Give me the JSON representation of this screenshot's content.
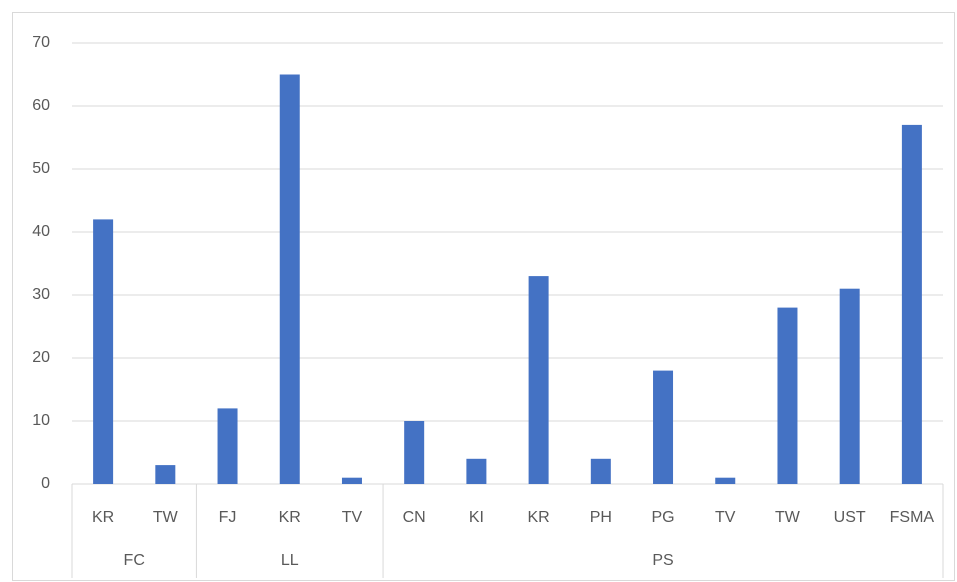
{
  "chart_data": {
    "type": "bar",
    "color": "#4472c4",
    "grid": true,
    "ylim": [
      0,
      70
    ],
    "yticks": [
      0,
      10,
      20,
      30,
      40,
      50,
      60,
      70
    ],
    "groups": [
      {
        "name": "FC",
        "categories": [
          "KR",
          "TW"
        ],
        "values": [
          42,
          3
        ]
      },
      {
        "name": "LL",
        "categories": [
          "FJ",
          "KR",
          "TV"
        ],
        "values": [
          12,
          65,
          1
        ]
      },
      {
        "name": "PS",
        "categories": [
          "CN",
          "KI",
          "KR",
          "PH",
          "PG",
          "TV",
          "TW",
          "UST",
          "FSMA"
        ],
        "values": [
          10,
          4,
          33,
          4,
          18,
          1,
          28,
          31,
          57
        ]
      }
    ]
  }
}
